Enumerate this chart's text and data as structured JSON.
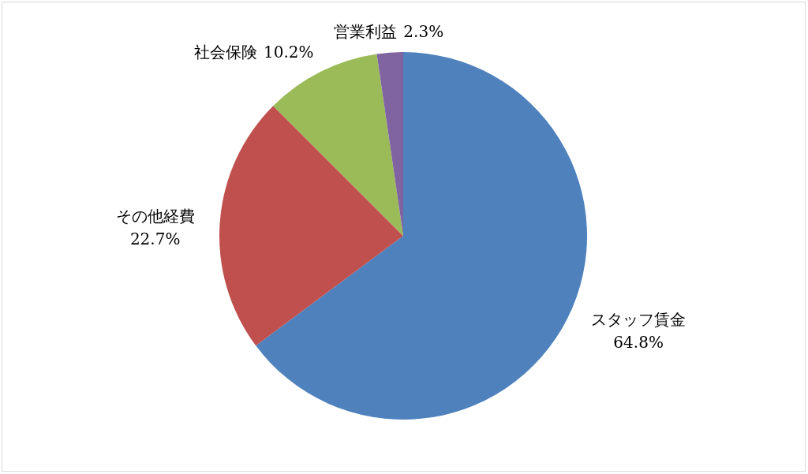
{
  "chart_data": {
    "type": "pie",
    "categories": [
      "スタッフ賃金",
      "その他経費",
      "社会保険",
      "営業利益"
    ],
    "values": [
      64.8,
      22.7,
      10.2,
      2.3
    ],
    "value_labels": [
      "64.8%",
      "22.7%",
      "10.2%",
      "2.3%"
    ],
    "colors": [
      "#4f81bd",
      "#c0504d",
      "#9bbb59",
      "#8064a2"
    ]
  }
}
